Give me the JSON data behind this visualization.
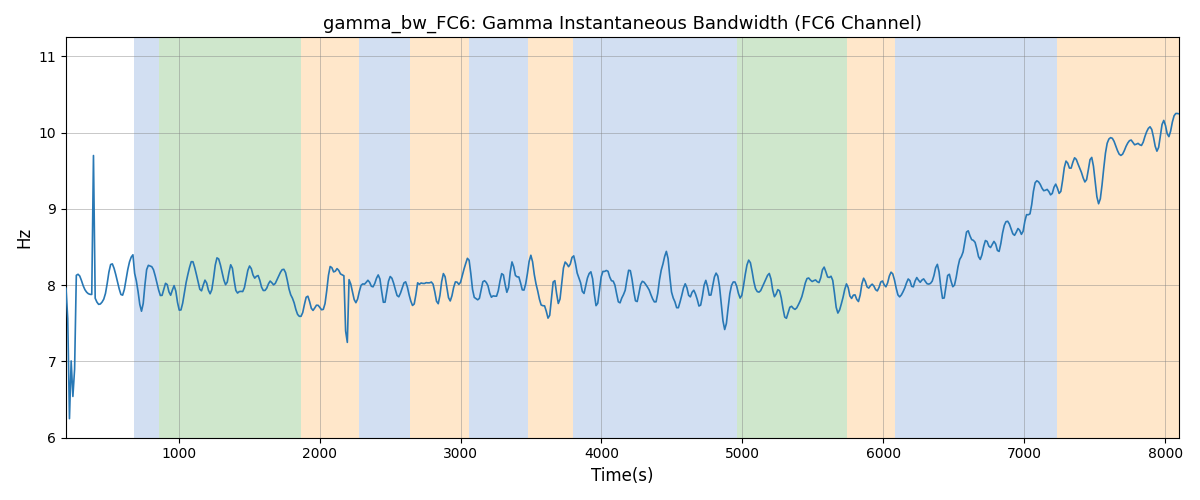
{
  "title": "gamma_bw_FC6: Gamma Instantaneous Bandwidth (FC6 Channel)",
  "xlabel": "Time(s)",
  "ylabel": "Hz",
  "xlim": [
    200,
    8100
  ],
  "ylim": [
    6,
    11.25
  ],
  "yticks": [
    6,
    7,
    8,
    9,
    10,
    11
  ],
  "xticks": [
    1000,
    2000,
    3000,
    4000,
    5000,
    6000,
    7000,
    8000
  ],
  "line_color": "#2878b5",
  "line_width": 1.2,
  "background_color": "white",
  "bands": [
    {
      "xmin": 680,
      "xmax": 860,
      "color": "#aec6e8",
      "alpha": 0.55
    },
    {
      "xmin": 860,
      "xmax": 1870,
      "color": "#a8d5a2",
      "alpha": 0.55
    },
    {
      "xmin": 1870,
      "xmax": 2280,
      "color": "#ffd5a0",
      "alpha": 0.55
    },
    {
      "xmin": 2280,
      "xmax": 2640,
      "color": "#aec6e8",
      "alpha": 0.55
    },
    {
      "xmin": 2640,
      "xmax": 3060,
      "color": "#ffd5a0",
      "alpha": 0.55
    },
    {
      "xmin": 3060,
      "xmax": 3480,
      "color": "#aec6e8",
      "alpha": 0.55
    },
    {
      "xmin": 3480,
      "xmax": 3800,
      "color": "#ffd5a0",
      "alpha": 0.55
    },
    {
      "xmin": 3800,
      "xmax": 4820,
      "color": "#aec6e8",
      "alpha": 0.55
    },
    {
      "xmin": 4820,
      "xmax": 4960,
      "color": "#aec6e8",
      "alpha": 0.55
    },
    {
      "xmin": 4960,
      "xmax": 5740,
      "color": "#a8d5a2",
      "alpha": 0.55
    },
    {
      "xmin": 5740,
      "xmax": 6080,
      "color": "#ffd5a0",
      "alpha": 0.55
    },
    {
      "xmin": 6080,
      "xmax": 7080,
      "color": "#aec6e8",
      "alpha": 0.55
    },
    {
      "xmin": 7080,
      "xmax": 7230,
      "color": "#aec6e8",
      "alpha": 0.55
    },
    {
      "xmin": 7230,
      "xmax": 8100,
      "color": "#ffd5a0",
      "alpha": 0.55
    }
  ],
  "n_points": 650,
  "seed": 7
}
